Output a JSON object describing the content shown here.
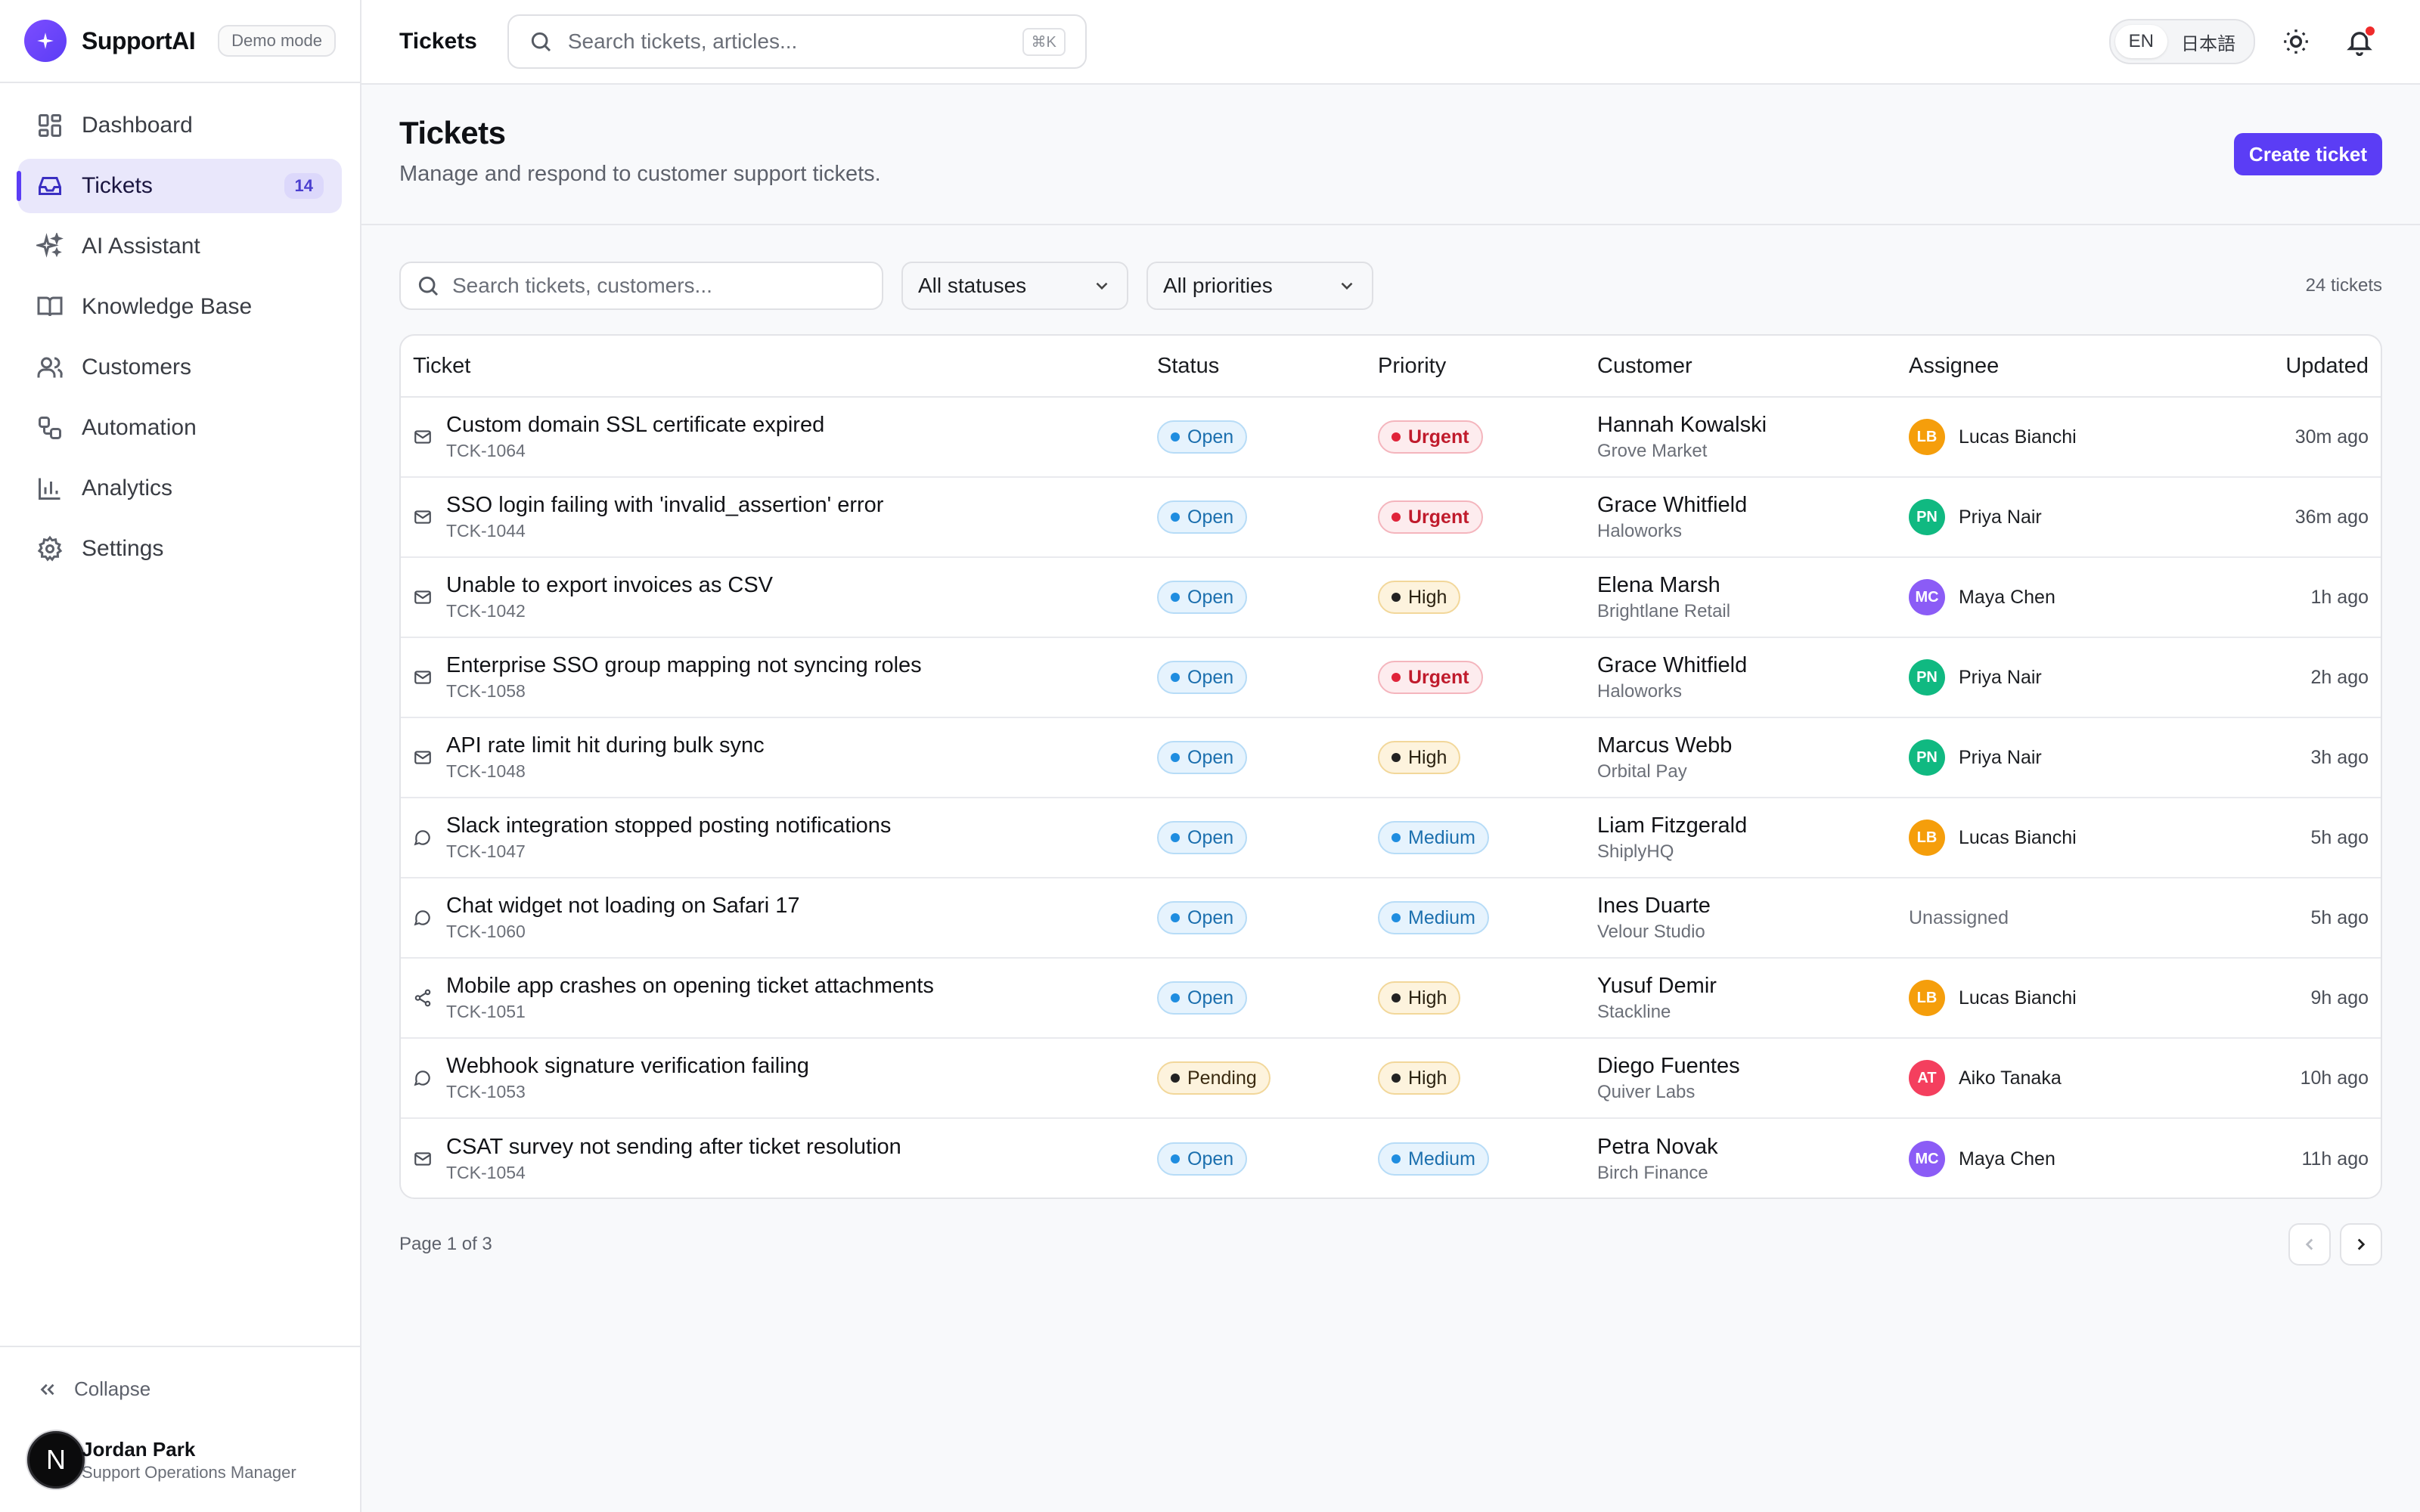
{
  "brand": {
    "name": "SupportAI",
    "mode_badge": "Demo mode"
  },
  "colors": {
    "accent": "#5b3df5",
    "urgent": "#e0243a",
    "info": "#1f8de0",
    "warning_bg": "#fdf3dd"
  },
  "sidebar": {
    "items": [
      {
        "label": "Dashboard",
        "icon": "grid-icon"
      },
      {
        "label": "Tickets",
        "icon": "inbox-icon",
        "count": "14",
        "active": true
      },
      {
        "label": "AI Assistant",
        "icon": "sparkles-icon"
      },
      {
        "label": "Knowledge Base",
        "icon": "book-icon"
      },
      {
        "label": "Customers",
        "icon": "users-icon"
      },
      {
        "label": "Automation",
        "icon": "workflow-icon"
      },
      {
        "label": "Analytics",
        "icon": "bar-chart-icon"
      },
      {
        "label": "Settings",
        "icon": "gear-icon"
      }
    ],
    "collapse_label": "Collapse",
    "user": {
      "initial": "N",
      "name": "Jordan Park",
      "role": "Support Operations Manager"
    }
  },
  "topbar": {
    "title": "Tickets",
    "search_placeholder": "Search tickets, articles...",
    "shortcut": "⌘K",
    "languages": [
      "EN",
      "日本語"
    ],
    "active_language": "EN"
  },
  "page": {
    "title": "Tickets",
    "subtitle": "Manage and respond to customer support tickets.",
    "create_label": "Create ticket"
  },
  "filters": {
    "search_placeholder": "Search tickets, customers...",
    "status_value": "All statuses",
    "priority_value": "All priorities",
    "ticket_count": "24 tickets"
  },
  "table": {
    "headers": {
      "ticket": "Ticket",
      "status": "Status",
      "priority": "Priority",
      "customer": "Customer",
      "assignee": "Assignee",
      "updated": "Updated"
    },
    "rows": [
      {
        "channel": "mail-icon",
        "title": "Custom domain SSL certificate expired",
        "id": "TCK-1064",
        "status": "Open",
        "priority": "Urgent",
        "customer": "Hannah Kowalski",
        "org": "Grove Market",
        "assignee_initials": "LB",
        "assignee": "Lucas Bianchi",
        "assignee_color": "#f59e0b",
        "updated": "30m ago"
      },
      {
        "channel": "mail-icon",
        "title": "SSO login failing with 'invalid_assertion' error",
        "id": "TCK-1044",
        "status": "Open",
        "priority": "Urgent",
        "customer": "Grace Whitfield",
        "org": "Haloworks",
        "assignee_initials": "PN",
        "assignee": "Priya Nair",
        "assignee_color": "#10b981",
        "updated": "36m ago"
      },
      {
        "channel": "mail-icon",
        "title": "Unable to export invoices as CSV",
        "id": "TCK-1042",
        "status": "Open",
        "priority": "High",
        "customer": "Elena Marsh",
        "org": "Brightlane Retail",
        "assignee_initials": "MC",
        "assignee": "Maya Chen",
        "assignee_color": "#8b5cf6",
        "updated": "1h ago"
      },
      {
        "channel": "mail-icon",
        "title": "Enterprise SSO group mapping not syncing roles",
        "id": "TCK-1058",
        "status": "Open",
        "priority": "Urgent",
        "customer": "Grace Whitfield",
        "org": "Haloworks",
        "assignee_initials": "PN",
        "assignee": "Priya Nair",
        "assignee_color": "#10b981",
        "updated": "2h ago"
      },
      {
        "channel": "mail-icon",
        "title": "API rate limit hit during bulk sync",
        "id": "TCK-1048",
        "status": "Open",
        "priority": "High",
        "customer": "Marcus Webb",
        "org": "Orbital Pay",
        "assignee_initials": "PN",
        "assignee": "Priya Nair",
        "assignee_color": "#10b981",
        "updated": "3h ago"
      },
      {
        "channel": "chat-icon",
        "title": "Slack integration stopped posting notifications",
        "id": "TCK-1047",
        "status": "Open",
        "priority": "Medium",
        "customer": "Liam Fitzgerald",
        "org": "ShiplyHQ",
        "assignee_initials": "LB",
        "assignee": "Lucas Bianchi",
        "assignee_color": "#f59e0b",
        "updated": "5h ago"
      },
      {
        "channel": "chat-icon",
        "title": "Chat widget not loading on Safari 17",
        "id": "TCK-1060",
        "status": "Open",
        "priority": "Medium",
        "customer": "Ines Duarte",
        "org": "Velour Studio",
        "assignee_initials": "",
        "assignee": "Unassigned",
        "assignee_color": "",
        "updated": "5h ago"
      },
      {
        "channel": "share-icon",
        "title": "Mobile app crashes on opening ticket attachments",
        "id": "TCK-1051",
        "status": "Open",
        "priority": "High",
        "customer": "Yusuf Demir",
        "org": "Stackline",
        "assignee_initials": "LB",
        "assignee": "Lucas Bianchi",
        "assignee_color": "#f59e0b",
        "updated": "9h ago"
      },
      {
        "channel": "chat-icon",
        "title": "Webhook signature verification failing",
        "id": "TCK-1053",
        "status": "Pending",
        "priority": "High",
        "customer": "Diego Fuentes",
        "org": "Quiver Labs",
        "assignee_initials": "AT",
        "assignee": "Aiko Tanaka",
        "assignee_color": "#f43f5e",
        "updated": "10h ago"
      },
      {
        "channel": "mail-icon",
        "title": "CSAT survey not sending after ticket resolution",
        "id": "TCK-1054",
        "status": "Open",
        "priority": "Medium",
        "customer": "Petra Novak",
        "org": "Birch Finance",
        "assignee_initials": "MC",
        "assignee": "Maya Chen",
        "assignee_color": "#8b5cf6",
        "updated": "11h ago"
      }
    ]
  },
  "pagination": {
    "info": "Page 1 of 3"
  }
}
